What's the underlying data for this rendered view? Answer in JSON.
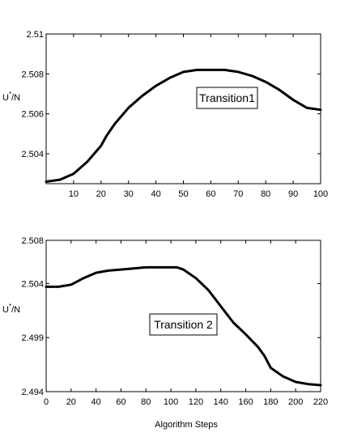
{
  "chart_data": [
    {
      "type": "line",
      "title": "",
      "xlabel": "",
      "ylabel": "U*/N",
      "ylabel_base": "U",
      "ylabel_sup": "*",
      "ylabel_rest": "/N",
      "annotation": "Transition1",
      "xlim": [
        0,
        100
      ],
      "ylim": [
        2.5025,
        2.51
      ],
      "xticks": [
        10,
        20,
        30,
        40,
        50,
        60,
        70,
        80,
        90,
        100
      ],
      "yticks": [
        2.504,
        2.506,
        2.508,
        2.51
      ],
      "ytick_labels": [
        "2.504",
        "2.506",
        "2.508",
        "2.51"
      ],
      "grid": false,
      "series": [
        {
          "x": [
            0,
            5,
            10,
            15,
            20,
            22,
            25,
            30,
            35,
            40,
            45,
            50,
            55,
            60,
            65,
            70,
            75,
            80,
            85,
            90,
            95,
            100
          ],
          "y": [
            2.5026,
            2.5027,
            2.503,
            2.5036,
            2.5044,
            2.5049,
            2.5055,
            2.5063,
            2.5069,
            2.5074,
            2.5078,
            2.5081,
            2.5082,
            2.5082,
            2.5082,
            2.5081,
            2.5079,
            2.5076,
            2.5072,
            2.5067,
            2.5063,
            2.5062
          ]
        }
      ]
    },
    {
      "type": "line",
      "title": "",
      "xlabel": "Algorithm Steps",
      "ylabel": "U*/N",
      "ylabel_base": "U",
      "ylabel_sup": "*",
      "ylabel_rest": "/N",
      "annotation": "Transition 2",
      "xlim": [
        0,
        220
      ],
      "ylim": [
        2.494,
        2.508
      ],
      "xticks": [
        0,
        20,
        40,
        60,
        80,
        100,
        120,
        140,
        160,
        180,
        200,
        220
      ],
      "yticks": [
        2.494,
        2.499,
        2.504,
        2.508
      ],
      "ytick_labels": [
        "2.494",
        "2.499",
        "2.504",
        "2.508"
      ],
      "grid": false,
      "series": [
        {
          "x": [
            0,
            10,
            20,
            25,
            30,
            40,
            50,
            60,
            70,
            80,
            90,
            100,
            105,
            110,
            120,
            130,
            140,
            150,
            160,
            170,
            175,
            180,
            190,
            200,
            210,
            220
          ],
          "y": [
            2.5037,
            2.5037,
            2.5039,
            2.5042,
            2.5045,
            2.505,
            2.5052,
            2.5053,
            2.5054,
            2.5055,
            2.5055,
            2.5055,
            2.5055,
            2.5053,
            2.5045,
            2.5034,
            2.5019,
            2.5004,
            2.4993,
            2.4981,
            2.4973,
            2.4962,
            2.4954,
            2.4949,
            2.4947,
            2.4946
          ]
        }
      ]
    }
  ]
}
